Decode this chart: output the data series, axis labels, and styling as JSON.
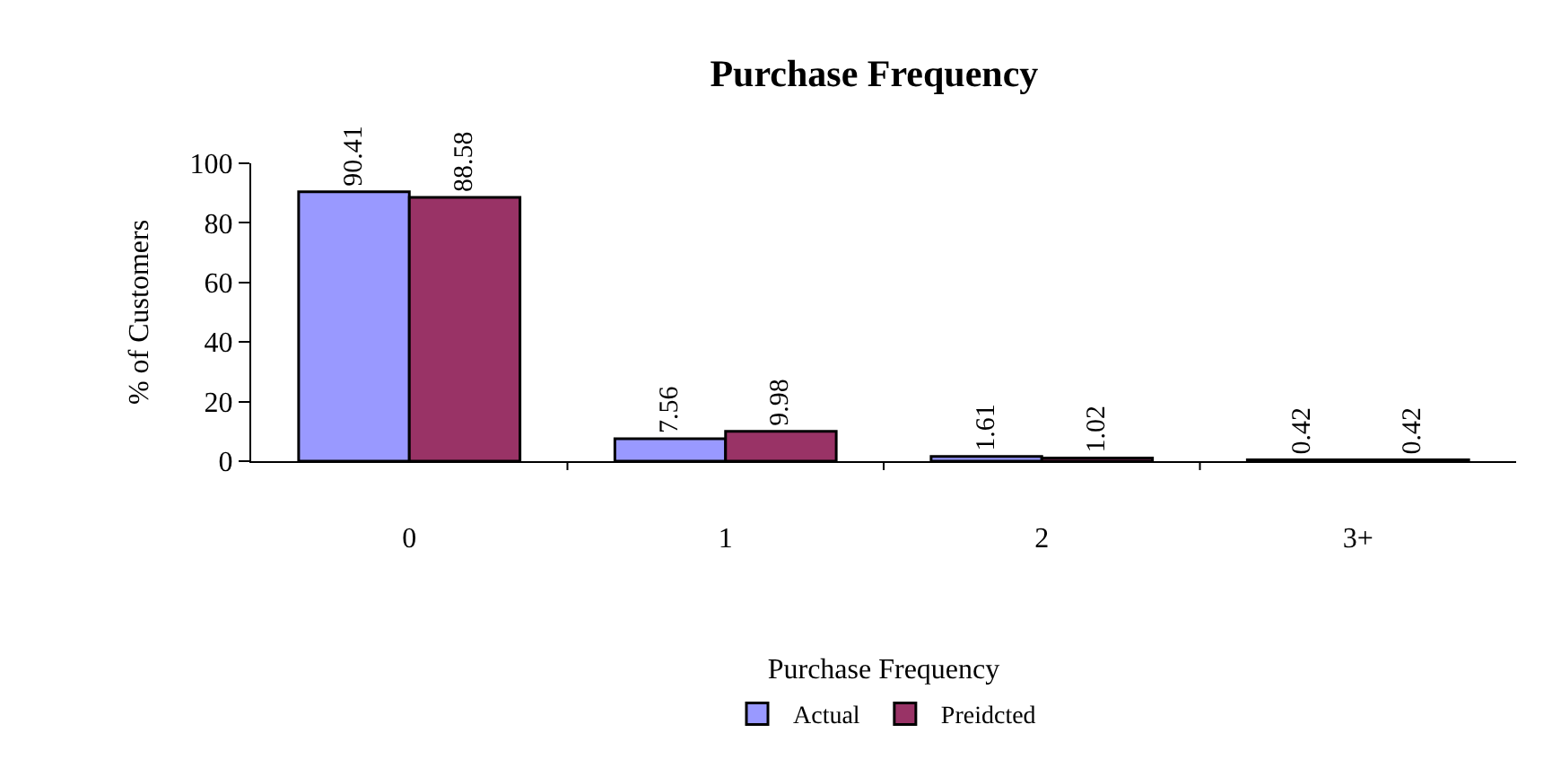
{
  "chart_data": {
    "type": "bar",
    "title": "Purchase Frequency",
    "xlabel": "Purchase Frequency",
    "ylabel": "% of Customers",
    "categories": [
      "0",
      "1",
      "2",
      "3+"
    ],
    "series": [
      {
        "name": "Actual",
        "color": "#9999ff",
        "values": [
          90.41,
          7.56,
          1.61,
          0.42
        ]
      },
      {
        "name": "Preidcted",
        "color": "#993366",
        "values": [
          88.58,
          9.98,
          1.02,
          0.42
        ]
      }
    ],
    "ylim": [
      0,
      100
    ],
    "yticks": [
      0,
      20,
      40,
      60,
      80,
      100
    ],
    "grid": false,
    "legend": "bottom",
    "data_labels": true
  }
}
